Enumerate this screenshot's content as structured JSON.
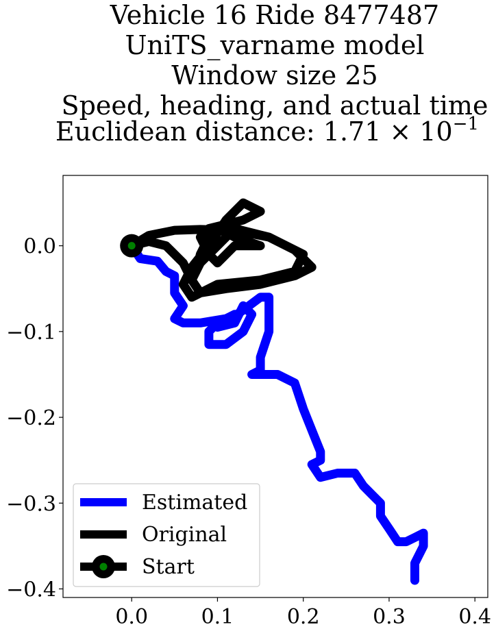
{
  "chart_data": {
    "type": "line",
    "title_lines": [
      "Vehicle 16 Ride 8477487",
      "UniTS_varname model",
      "Window size 25",
      "Speed, heading, and actual time"
    ],
    "title_distance_prefix": "Euclidean distance: 1.71 × 10",
    "title_distance_exponent": "−1",
    "xlabel": "",
    "ylabel": "",
    "xlim": [
      -0.08,
      0.415
    ],
    "ylim": [
      -0.41,
      0.082
    ],
    "x_ticks": [
      0.0,
      0.1,
      0.2,
      0.3,
      0.4
    ],
    "x_tick_labels": [
      "0.0",
      "0.1",
      "0.2",
      "0.3",
      "0.4"
    ],
    "y_ticks": [
      0.0,
      -0.1,
      -0.2,
      -0.3,
      -0.4
    ],
    "y_tick_labels": [
      "0.0",
      "−0.1",
      "−0.2",
      "−0.3",
      "−0.4"
    ],
    "grid": false,
    "legend_position": "lower-left",
    "series": [
      {
        "name": "Estimated",
        "color": "#0000ff",
        "x": [
          0.0,
          0.01,
          0.03,
          0.04,
          0.05,
          0.05,
          0.06,
          0.05,
          0.06,
          0.08,
          0.11,
          0.12,
          0.1,
          0.09,
          0.09,
          0.11,
          0.13,
          0.14,
          0.13,
          0.12,
          0.1,
          0.13,
          0.15,
          0.16,
          0.16,
          0.15,
          0.15,
          0.14,
          0.14,
          0.17,
          0.19,
          0.2,
          0.21,
          0.22,
          0.22,
          0.21,
          0.22,
          0.24,
          0.26,
          0.27,
          0.28,
          0.29,
          0.29,
          0.3,
          0.31,
          0.32,
          0.33,
          0.34,
          0.34,
          0.33,
          0.33
        ],
        "y": [
          0.0,
          -0.015,
          -0.018,
          -0.03,
          -0.035,
          -0.055,
          -0.07,
          -0.085,
          -0.09,
          -0.09,
          -0.085,
          -0.08,
          -0.09,
          -0.1,
          -0.115,
          -0.115,
          -0.1,
          -0.08,
          -0.07,
          -0.09,
          -0.095,
          -0.075,
          -0.06,
          -0.06,
          -0.1,
          -0.13,
          -0.145,
          -0.15,
          -0.15,
          -0.15,
          -0.16,
          -0.19,
          -0.215,
          -0.24,
          -0.25,
          -0.255,
          -0.27,
          -0.265,
          -0.265,
          -0.28,
          -0.29,
          -0.3,
          -0.315,
          -0.33,
          -0.345,
          -0.345,
          -0.34,
          -0.335,
          -0.35,
          -0.37,
          -0.39
        ]
      },
      {
        "name": "Original",
        "color": "#000000",
        "x": [
          0.0,
          0.02,
          0.05,
          0.08,
          0.12,
          0.16,
          0.19,
          0.21,
          0.19,
          0.15,
          0.11,
          0.08,
          0.07,
          0.08,
          0.1,
          0.12,
          0.16,
          0.2,
          0.19,
          0.15,
          0.1,
          0.07,
          0.06,
          0.07,
          0.09,
          0.11,
          0.13,
          0.15,
          0.13,
          0.11,
          0.09,
          0.08,
          0.09,
          0.1,
          0.11,
          0.12,
          0.13,
          0.15,
          0.12,
          0.1,
          0.09,
          0.08,
          0.075,
          0.07,
          0.06,
          0.04,
          0.02,
          0.0
        ],
        "y": [
          0.0,
          0.012,
          0.018,
          0.019,
          0.018,
          0.01,
          -0.005,
          -0.025,
          -0.035,
          -0.045,
          -0.05,
          -0.055,
          -0.04,
          -0.02,
          0.0,
          0.02,
          0.01,
          -0.01,
          -0.03,
          -0.04,
          -0.045,
          -0.06,
          -0.045,
          -0.025,
          0.0,
          0.03,
          0.05,
          0.04,
          0.03,
          0.025,
          0.02,
          0.01,
          -0.01,
          -0.02,
          -0.01,
          0.0,
          0.0,
          0.0,
          0.01,
          0.02,
          0.01,
          -0.01,
          -0.03,
          -0.04,
          -0.02,
          0.0,
          0.005,
          0.0
        ]
      }
    ],
    "start_point": {
      "x": 0.0,
      "y": 0.0,
      "label": "Start",
      "marker_color": "#008000",
      "ring_color": "#000000"
    },
    "legend_entries": [
      "Estimated",
      "Original",
      "Start"
    ]
  }
}
